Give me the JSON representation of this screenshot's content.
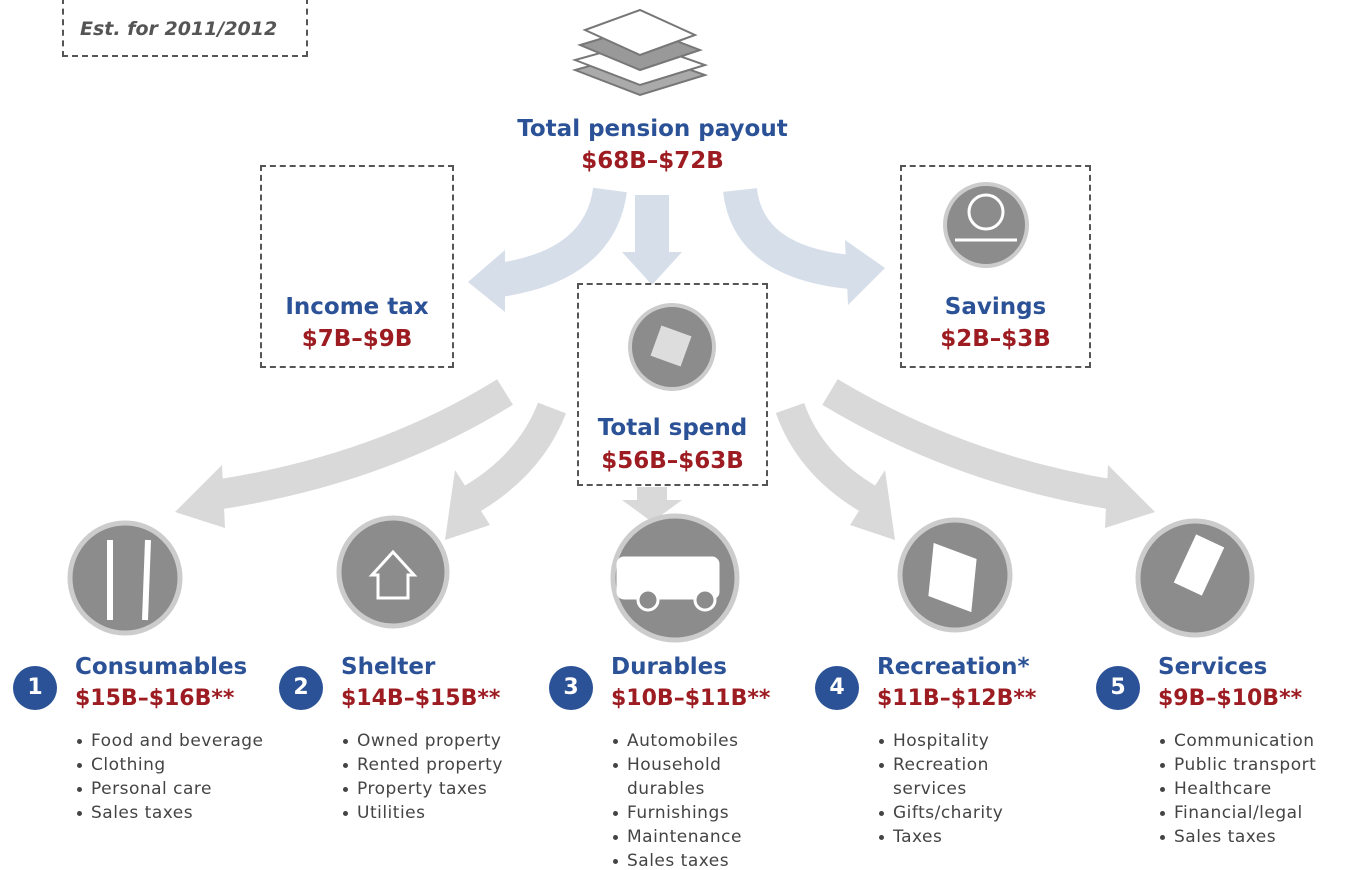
{
  "note": "Est. for 2011/2012",
  "total": {
    "label": "Total pension payout",
    "amount": "$68B–$72B"
  },
  "income_tax": {
    "label": "Income tax",
    "amount": "$7B–$9B"
  },
  "savings": {
    "label": "Savings",
    "amount": "$2B–$3B"
  },
  "total_spend": {
    "label": "Total spend",
    "amount": "$56B–$63B"
  },
  "categories": [
    {
      "number": "1",
      "name": "Consumables",
      "amount": "$15B–$16B**",
      "items": [
        "Food and beverage",
        "Clothing",
        "Personal care",
        "Sales taxes"
      ]
    },
    {
      "number": "2",
      "name": "Shelter",
      "amount": "$14B–$15B**",
      "items": [
        "Owned property",
        "Rented property",
        "Property taxes",
        "Utilities"
      ]
    },
    {
      "number": "3",
      "name": "Durables",
      "amount": "$10B–$11B**",
      "items": [
        "Automobiles",
        "Household durables",
        "Furnishings",
        "Maintenance",
        "Sales taxes"
      ]
    },
    {
      "number": "4",
      "name": "Recreation*",
      "amount": "$11B–$12B**",
      "items": [
        "Hospitality",
        "Recreation services",
        "Gifts/charity",
        "Taxes"
      ]
    },
    {
      "number": "5",
      "name": "Services",
      "amount": "$9B–$10B**",
      "items": [
        "Communication",
        "Public transport",
        "Healthcare",
        "Financial/legal",
        "Sales taxes"
      ]
    }
  ]
}
